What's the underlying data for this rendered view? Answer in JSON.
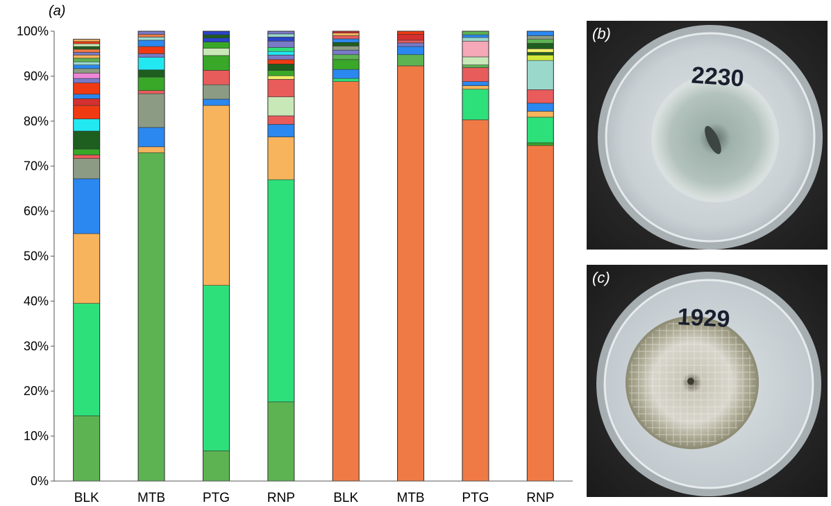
{
  "panel_labels": {
    "a": "(a)",
    "b": "(b)",
    "c": "(c)"
  },
  "chart_data": {
    "type": "bar",
    "stacked": true,
    "title": "",
    "xlabel": "",
    "ylabel": "",
    "ylim": [
      0,
      100
    ],
    "ytick_labels": [
      "0%",
      "10%",
      "20%",
      "30%",
      "40%",
      "50%",
      "60%",
      "70%",
      "80%",
      "90%",
      "100%"
    ],
    "categories": [
      "BLK",
      "MTB",
      "PTG",
      "RNP",
      "BLK",
      "MTB",
      "PTG",
      "RNP"
    ],
    "grid": false,
    "legend": "none",
    "segment_colors": [
      "#5db352",
      "#2ee07a",
      "#f8b45c",
      "#2b88f0",
      "#8c9c84",
      "#e85c5c",
      "#39a829",
      "#1e5e1e",
      "#22e8f2",
      "#f03a12",
      "#d43030",
      "#7a7ac8",
      "#ee86d8",
      "#f07a45",
      "#c8e8b8",
      "#9ad8cc",
      "#f4a8b8",
      "#d2e83a",
      "#2a44c8",
      "#f1f068"
    ],
    "stacks": [
      {
        "label": "BLK",
        "segments": [
          {
            "value": 14.5,
            "color": "#5db352"
          },
          {
            "value": 25.0,
            "color": "#2ee07a"
          },
          {
            "value": 15.5,
            "color": "#f8b45c"
          },
          {
            "value": 12.2,
            "color": "#2b88f0"
          },
          {
            "value": 4.5,
            "color": "#8c9c84"
          },
          {
            "value": 0.8,
            "color": "#e85c5c"
          },
          {
            "value": 1.3,
            "color": "#39a829"
          },
          {
            "value": 4.0,
            "color": "#1e5e1e"
          },
          {
            "value": 2.7,
            "color": "#22e8f2"
          },
          {
            "value": 3.0,
            "color": "#f03a12"
          },
          {
            "value": 1.5,
            "color": "#d43030"
          },
          {
            "value": 1.0,
            "color": "#2b88f0"
          },
          {
            "value": 2.5,
            "color": "#f03a12"
          },
          {
            "value": 1.0,
            "color": "#7a7ac8"
          },
          {
            "value": 1.2,
            "color": "#ee86d8"
          },
          {
            "value": 1.0,
            "color": "#8c9c84"
          },
          {
            "value": 0.8,
            "color": "#2b88f0"
          },
          {
            "value": 0.7,
            "color": "#9ad8cc"
          },
          {
            "value": 0.8,
            "color": "#5db352"
          },
          {
            "value": 0.7,
            "color": "#f8b45c"
          },
          {
            "value": 0.6,
            "color": "#7a7ac8"
          },
          {
            "value": 0.7,
            "color": "#f07a45"
          },
          {
            "value": 0.6,
            "color": "#1e5e1e"
          },
          {
            "value": 0.6,
            "color": "#c8e8b8"
          },
          {
            "value": 0.5,
            "color": "#f03a12"
          },
          {
            "value": 0.5,
            "color": "#f8b45c"
          }
        ]
      },
      {
        "label": "MTB",
        "segments": [
          {
            "value": 73.0,
            "color": "#5db352"
          },
          {
            "value": 1.3,
            "color": "#f8b45c"
          },
          {
            "value": 4.3,
            "color": "#2b88f0"
          },
          {
            "value": 7.5,
            "color": "#8c9c84"
          },
          {
            "value": 0.7,
            "color": "#e85c5c"
          },
          {
            "value": 3.0,
            "color": "#39a829"
          },
          {
            "value": 1.6,
            "color": "#1e5e1e"
          },
          {
            "value": 2.8,
            "color": "#22e8f2"
          },
          {
            "value": 0.8,
            "color": "#7a7ac8"
          },
          {
            "value": 1.6,
            "color": "#f03a12"
          },
          {
            "value": 1.4,
            "color": "#2b88f0"
          },
          {
            "value": 0.7,
            "color": "#9ad8cc"
          },
          {
            "value": 0.6,
            "color": "#f07a45"
          },
          {
            "value": 0.7,
            "color": "#7a7ac8"
          }
        ]
      },
      {
        "label": "PTG",
        "segments": [
          {
            "value": 6.7,
            "color": "#5db352"
          },
          {
            "value": 36.8,
            "color": "#2ee07a"
          },
          {
            "value": 40.0,
            "color": "#f8b45c"
          },
          {
            "value": 1.4,
            "color": "#2b88f0"
          },
          {
            "value": 3.2,
            "color": "#8c9c84"
          },
          {
            "value": 3.2,
            "color": "#e85c5c"
          },
          {
            "value": 3.3,
            "color": "#39a829"
          },
          {
            "value": 1.6,
            "color": "#c8e8b8"
          },
          {
            "value": 1.4,
            "color": "#39a829"
          },
          {
            "value": 0.9,
            "color": "#2a44c8"
          },
          {
            "value": 0.7,
            "color": "#1e5e1e"
          },
          {
            "value": 0.8,
            "color": "#2a44c8"
          }
        ]
      },
      {
        "label": "RNP",
        "segments": [
          {
            "value": 17.6,
            "color": "#5db352"
          },
          {
            "value": 49.4,
            "color": "#2ee07a"
          },
          {
            "value": 9.5,
            "color": "#f8b45c"
          },
          {
            "value": 2.8,
            "color": "#2b88f0"
          },
          {
            "value": 1.9,
            "color": "#e85c5c"
          },
          {
            "value": 4.2,
            "color": "#c8e8b8"
          },
          {
            "value": 3.9,
            "color": "#e85c5c"
          },
          {
            "value": 0.8,
            "color": "#f1f068"
          },
          {
            "value": 1.2,
            "color": "#39a829"
          },
          {
            "value": 1.4,
            "color": "#1e5e1e"
          },
          {
            "value": 1.0,
            "color": "#f03a12"
          },
          {
            "value": 1.0,
            "color": "#7a7ac8"
          },
          {
            "value": 0.8,
            "color": "#22e8f2"
          },
          {
            "value": 0.9,
            "color": "#2ee07a"
          },
          {
            "value": 1.4,
            "color": "#7a7ac8"
          },
          {
            "value": 0.9,
            "color": "#2a44c8"
          },
          {
            "value": 0.7,
            "color": "#9ad8cc"
          },
          {
            "value": 0.6,
            "color": "#7a7ac8"
          }
        ]
      },
      {
        "label": "BLK",
        "segments": [
          {
            "value": 88.8,
            "color": "#f07a45"
          },
          {
            "value": 0.7,
            "color": "#2ee07a"
          },
          {
            "value": 2.0,
            "color": "#2b88f0"
          },
          {
            "value": 2.2,
            "color": "#39a829"
          },
          {
            "value": 1.1,
            "color": "#5db352"
          },
          {
            "value": 1.0,
            "color": "#7a7ac8"
          },
          {
            "value": 0.9,
            "color": "#8c9c84"
          },
          {
            "value": 0.8,
            "color": "#1e5e1e"
          },
          {
            "value": 0.8,
            "color": "#2b88f0"
          },
          {
            "value": 0.7,
            "color": "#e85c5c"
          },
          {
            "value": 0.6,
            "color": "#f8b45c"
          },
          {
            "value": 0.4,
            "color": "#d43030"
          }
        ]
      },
      {
        "label": "MTB",
        "segments": [
          {
            "value": 92.3,
            "color": "#f07a45"
          },
          {
            "value": 2.5,
            "color": "#5db352"
          },
          {
            "value": 1.8,
            "color": "#2b88f0"
          },
          {
            "value": 0.8,
            "color": "#7a7ac8"
          },
          {
            "value": 0.6,
            "color": "#e85c5c"
          },
          {
            "value": 1.3,
            "color": "#d43030"
          },
          {
            "value": 0.7,
            "color": "#f03a12"
          }
        ]
      },
      {
        "label": "PTG",
        "segments": [
          {
            "value": 80.3,
            "color": "#f07a45"
          },
          {
            "value": 6.8,
            "color": "#2ee07a"
          },
          {
            "value": 0.8,
            "color": "#f8b45c"
          },
          {
            "value": 0.9,
            "color": "#2b88f0"
          },
          {
            "value": 3.1,
            "color": "#e85c5c"
          },
          {
            "value": 0.6,
            "color": "#5db352"
          },
          {
            "value": 1.8,
            "color": "#c8e8b8"
          },
          {
            "value": 3.5,
            "color": "#f4a8b8"
          },
          {
            "value": 0.8,
            "color": "#9ad8cc"
          },
          {
            "value": 0.6,
            "color": "#2b88f0"
          },
          {
            "value": 0.8,
            "color": "#5db352"
          }
        ]
      },
      {
        "label": "RNP",
        "segments": [
          {
            "value": 74.6,
            "color": "#f07a45"
          },
          {
            "value": 0.6,
            "color": "#39a829"
          },
          {
            "value": 5.7,
            "color": "#2ee07a"
          },
          {
            "value": 1.3,
            "color": "#f8b45c"
          },
          {
            "value": 1.8,
            "color": "#2b88f0"
          },
          {
            "value": 3.0,
            "color": "#e85c5c"
          },
          {
            "value": 6.5,
            "color": "#9ad8cc"
          },
          {
            "value": 1.2,
            "color": "#d2e83a"
          },
          {
            "value": 0.6,
            "color": "#1e5e1e"
          },
          {
            "value": 0.8,
            "color": "#f1f068"
          },
          {
            "value": 1.2,
            "color": "#1e5e1e"
          },
          {
            "value": 0.9,
            "color": "#5db352"
          },
          {
            "value": 0.8,
            "color": "#8c9c84"
          },
          {
            "value": 1.0,
            "color": "#2b88f0"
          }
        ]
      }
    ]
  },
  "photos": [
    {
      "panel": "b",
      "plate_label": "2230"
    },
    {
      "panel": "c",
      "plate_label": "1929"
    }
  ]
}
